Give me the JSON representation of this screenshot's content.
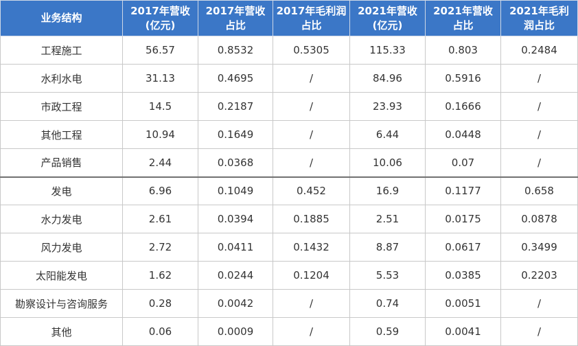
{
  "table": {
    "headers": [
      [
        "业务结构"
      ],
      [
        "2017年营收",
        "(亿元)"
      ],
      [
        "2017年营收",
        "占比"
      ],
      [
        "2017年毛利润",
        "占比"
      ],
      [
        "2021年营收",
        "(亿元)"
      ],
      [
        "2021年营收",
        "占比"
      ],
      [
        "2021年毛利",
        "润占比"
      ]
    ],
    "rows": [
      [
        "工程施工",
        "56.57",
        "0.8532",
        "0.5305",
        "115.33",
        "0.803",
        "0.2484"
      ],
      [
        "水利水电",
        "31.13",
        "0.4695",
        "/",
        "84.96",
        "0.5916",
        "/"
      ],
      [
        "市政工程",
        "14.5",
        "0.2187",
        "/",
        "23.93",
        "0.1666",
        "/"
      ],
      [
        "其他工程",
        "10.94",
        "0.1649",
        "/",
        "6.44",
        "0.0448",
        "/"
      ],
      [
        "产品销售",
        "2.44",
        "0.0368",
        "/",
        "10.06",
        "0.07",
        "/"
      ],
      [
        "发电",
        "6.96",
        "0.1049",
        "0.452",
        "16.9",
        "0.1177",
        "0.658"
      ],
      [
        "水力发电",
        "2.61",
        "0.0394",
        "0.1885",
        "2.51",
        "0.0175",
        "0.0878"
      ],
      [
        "风力发电",
        "2.72",
        "0.0411",
        "0.1432",
        "8.87",
        "0.0617",
        "0.3499"
      ],
      [
        "太阳能发电",
        "1.62",
        "0.0244",
        "0.1204",
        "5.53",
        "0.0385",
        "0.2203"
      ],
      [
        "勘察设计与咨询服务",
        "0.28",
        "0.0042",
        "/",
        "0.74",
        "0.0051",
        "/"
      ],
      [
        "其他",
        "0.06",
        "0.0009",
        "/",
        "0.59",
        "0.0041",
        "/"
      ]
    ]
  }
}
